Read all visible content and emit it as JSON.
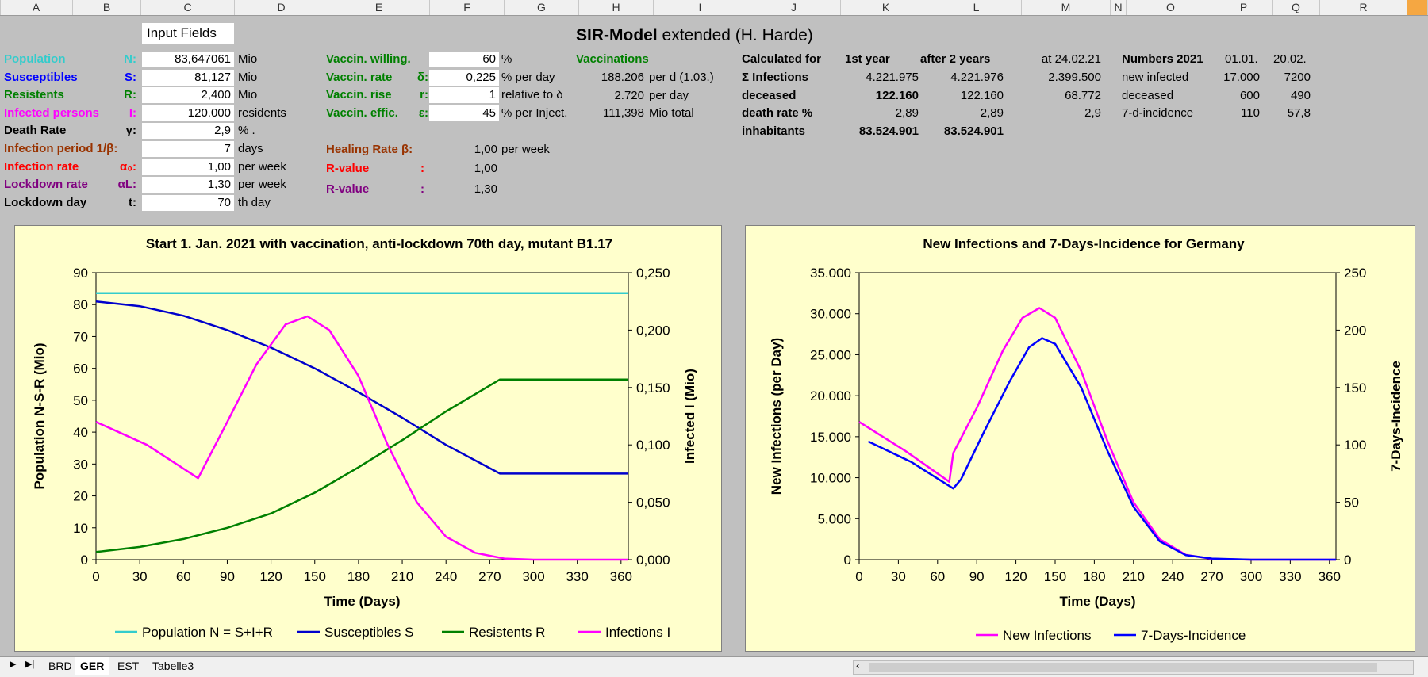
{
  "columns": [
    "A",
    "B",
    "C",
    "D",
    "E",
    "F",
    "G",
    "H",
    "I",
    "J",
    "K",
    "L",
    "M",
    "N",
    "O",
    "P",
    "Q",
    "R"
  ],
  "input_fields_label": "Input Fields",
  "title_bold": "SIR-Model",
  "title_rest": "extended (H. Harde)",
  "left_params": [
    {
      "label": "Population",
      "sym": "N:",
      "value": "83,647061",
      "unit": "Mio",
      "color": "#33cccc"
    },
    {
      "label": "Susceptibles",
      "sym": "S:",
      "value": "81,127",
      "unit": "Mio",
      "color": "#0000ff"
    },
    {
      "label": "Resistents",
      "sym": "R:",
      "value": "2,400",
      "unit": "Mio",
      "color": "#008000"
    },
    {
      "label": "Infected persons",
      "sym": "I:",
      "value": "120.000",
      "unit": "residents",
      "color": "#ff00ff"
    },
    {
      "label": "Death Rate",
      "sym": "γ:",
      "value": "2,9",
      "unit": "% .",
      "color": "#000000"
    },
    {
      "label": "Infection period 1/β:",
      "sym": "",
      "value": "7",
      "unit": "days",
      "color": "#993300"
    },
    {
      "label": "Infection rate",
      "sym": "α₀:",
      "value": "1,00",
      "unit": "per week",
      "color": "#ff0000"
    },
    {
      "label": "Lockdown rate",
      "sym": "αL:",
      "value": "1,30",
      "unit": "per week",
      "color": "#800080"
    },
    {
      "label": "Lockdown day",
      "sym": "t:",
      "value": "70",
      "unit": "th day",
      "color": "#000000"
    }
  ],
  "vacc_params": [
    {
      "label": "Vaccin. willing.",
      "sym": "",
      "value": "60",
      "unit": "%"
    },
    {
      "label": "Vaccin. rate",
      "sym": "δ:",
      "value": "0,225",
      "unit": "% per day"
    },
    {
      "label": "Vaccin. rise",
      "sym": "r:",
      "value": "1",
      "unit": "relative to δ"
    },
    {
      "label": "Vaccin. effic.",
      "sym": "ε:",
      "value": "45",
      "unit": "% per Inject."
    }
  ],
  "vaccinations": {
    "header": "Vaccinations",
    "rows": [
      {
        "value": "188.206",
        "unit": "per d (1.03.)"
      },
      {
        "value": "2.720",
        "unit": "per day"
      },
      {
        "value": "111,398",
        "unit": "Mio total"
      }
    ]
  },
  "healing": {
    "label": "Healing Rate β:",
    "value": "1,00",
    "unit": "per week"
  },
  "rvalue1": {
    "label": "R-value",
    "colon": ":",
    "value": "1,00"
  },
  "rvalue2": {
    "label": "R-value",
    "colon": ":",
    "value": "1,30"
  },
  "calc": {
    "headers": [
      "Calculated for",
      "1st year",
      "after 2 years",
      "at 24.02.21"
    ],
    "rows": [
      {
        "label": "Σ Infections",
        "v1": "4.221.975",
        "v2": "4.221.976",
        "v3": "2.399.500"
      },
      {
        "label": "deceased",
        "v1": "122.160",
        "v2": "122.160",
        "v3": "68.772"
      },
      {
        "label": "death rate %",
        "v1": "2,89",
        "v2": "2,89",
        "v3": "2,9"
      },
      {
        "label": "inhabitants",
        "v1": "83.524.901",
        "v2": "83.524.901",
        "v3": ""
      }
    ]
  },
  "numbers2021": {
    "headers": [
      "Numbers 2021",
      "01.01.",
      "20.02."
    ],
    "rows": [
      {
        "label": "new infected",
        "a": "17.000",
        "b": "7200"
      },
      {
        "label": "deceased",
        "a": "600",
        "b": "490"
      },
      {
        "label": "7-d-incidence",
        "a": "110",
        "b": "57,8"
      }
    ]
  },
  "tabs": [
    "BRD",
    "GER",
    "EST",
    "Tabelle3"
  ],
  "chart_data": [
    {
      "type": "line",
      "title": "Start 1. Jan. 2021 with vaccination, anti-lockdown 70th day, mutant B1.17",
      "xlabel": "Time (Days)",
      "ylabel": "Population N-S-R (Mio)",
      "y2label": "Infected I (Mio)",
      "xlim": [
        0,
        365
      ],
      "ylim": [
        0,
        90
      ],
      "y2lim": [
        0,
        0.25
      ],
      "xticks": [
        "0",
        "30",
        "60",
        "90",
        "120",
        "150",
        "180",
        "210",
        "240",
        "270",
        "300",
        "330",
        "360"
      ],
      "yticks": [
        "0",
        "10",
        "20",
        "30",
        "40",
        "50",
        "60",
        "70",
        "80",
        "90"
      ],
      "y2ticks": [
        "0,000",
        "0,050",
        "0,100",
        "0,150",
        "0,200",
        "0,250"
      ],
      "legend_position": "bottom",
      "series": [
        {
          "name": "Population N = S+I+R",
          "color": "#33cccc",
          "axis": "y",
          "x": [
            0,
            365
          ],
          "y": [
            83.6,
            83.6
          ]
        },
        {
          "name": "Susceptibles S",
          "color": "#0000cc",
          "axis": "y",
          "x": [
            0,
            30,
            60,
            90,
            120,
            150,
            180,
            210,
            240,
            277,
            365
          ],
          "y": [
            81,
            79.5,
            76.5,
            72,
            66.5,
            60,
            52.5,
            44.5,
            36,
            27,
            27
          ]
        },
        {
          "name": "Resistents R",
          "color": "#008000",
          "axis": "y",
          "x": [
            0,
            30,
            60,
            90,
            120,
            150,
            180,
            210,
            240,
            277,
            365
          ],
          "y": [
            2.4,
            4,
            6.5,
            10,
            14.5,
            21,
            29,
            37.5,
            46.5,
            56.5,
            56.5
          ]
        },
        {
          "name": "Infections I",
          "color": "#ff00ff",
          "axis": "y2",
          "x": [
            0,
            35,
            70,
            90,
            110,
            130,
            145,
            160,
            180,
            200,
            220,
            240,
            260,
            280,
            300,
            365
          ],
          "y": [
            0.12,
            0.1,
            0.071,
            0.12,
            0.17,
            0.205,
            0.212,
            0.2,
            0.16,
            0.1,
            0.05,
            0.02,
            0.006,
            0.001,
            0,
            0
          ]
        }
      ]
    },
    {
      "type": "line",
      "title": "New Infections and 7-Days-Incidence for Germany",
      "xlabel": "Time (Days)",
      "ylabel": "New Infections (per Day)",
      "y2label": "7-Days-Incidence",
      "xlim": [
        0,
        365
      ],
      "ylim": [
        0,
        35000
      ],
      "y2lim": [
        0,
        250
      ],
      "xticks": [
        "0",
        "30",
        "60",
        "90",
        "120",
        "150",
        "180",
        "210",
        "240",
        "270",
        "300",
        "330",
        "360"
      ],
      "yticks": [
        "0",
        "5.000",
        "10.000",
        "15.000",
        "20.000",
        "25.000",
        "30.000",
        "35.000"
      ],
      "y2ticks": [
        "0",
        "50",
        "100",
        "150",
        "200",
        "250"
      ],
      "legend_position": "bottom",
      "series": [
        {
          "name": "New Infections",
          "color": "#ff00ff",
          "axis": "y",
          "x": [
            0,
            35,
            69,
            72,
            90,
            110,
            125,
            138,
            150,
            170,
            190,
            210,
            230,
            250,
            270,
            300,
            365
          ],
          "y": [
            16800,
            13300,
            9500,
            13000,
            18500,
            25500,
            29500,
            30700,
            29500,
            23000,
            14500,
            7000,
            2500,
            600,
            100,
            0,
            0
          ]
        },
        {
          "name": "7-Days-Incidence",
          "color": "#0000ff",
          "axis": "y2",
          "x": [
            7,
            40,
            72,
            78,
            95,
            115,
            130,
            140,
            150,
            170,
            190,
            210,
            230,
            250,
            270,
            300,
            365
          ],
          "y": [
            103,
            85,
            62,
            70,
            110,
            155,
            185,
            193,
            188,
            150,
            95,
            46,
            16,
            4,
            1,
            0,
            0
          ]
        }
      ]
    }
  ]
}
